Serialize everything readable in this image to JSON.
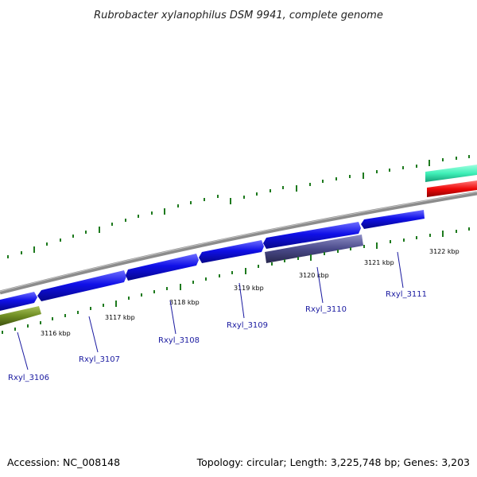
{
  "title": "Rubrobacter xylanophilus DSM 9941, complete genome",
  "footer": {
    "accession": "Accession: NC_008148",
    "summary": "Topology: circular; Length: 3,225,748 bp; Genes: 3,203"
  },
  "colors": {
    "forward_gene": "#1010e8",
    "reverse_gene_green": "#6e8c22",
    "reverse_gene_purple": "#4a4a8a",
    "cyan_feature": "#40f0b8",
    "red_feature": "#ee0808",
    "backbone": "#8c8c8c",
    "tick": "#1e7a1e",
    "gene_label": "#1a1aa0"
  },
  "kbp_labels": [
    "3116 kbp",
    "3117 kbp",
    "3118 kbp",
    "3119 kbp",
    "3120 kbp",
    "3121 kbp",
    "3122 kbp"
  ],
  "gene_labels": [
    "Rxyl_3106",
    "Rxyl_3107",
    "Rxyl_3108",
    "Rxyl_3109",
    "Rxyl_3110",
    "Rxyl_3111"
  ]
}
